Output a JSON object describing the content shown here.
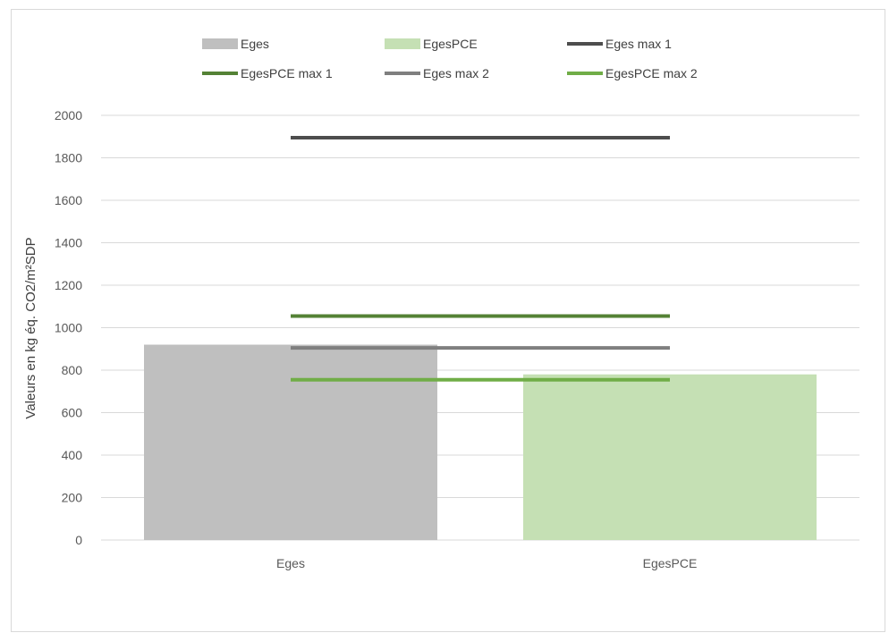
{
  "chart_data": {
    "type": "bar",
    "title": "",
    "xlabel": "",
    "ylabel": "Valeurs en kg éq. CO2/m²SDP",
    "categories": [
      "Eges",
      "EgesPCE"
    ],
    "ylim": [
      0,
      2000
    ],
    "yticks": [
      0,
      200,
      400,
      600,
      800,
      1000,
      1200,
      1400,
      1600,
      1800,
      2000
    ],
    "grid": true,
    "legend_position": "top",
    "bars": [
      {
        "name": "Eges",
        "category": "Eges",
        "value": 920,
        "color": "#bfbfbf"
      },
      {
        "name": "EgesPCE",
        "category": "EgesPCE",
        "value": 780,
        "color": "#c5e0b4"
      }
    ],
    "reference_lines": [
      {
        "name": "Eges max 1",
        "value": 1895,
        "color": "#4d4d4d"
      },
      {
        "name": "EgesPCE max 1",
        "value": 1055,
        "color": "#548235"
      },
      {
        "name": "Eges max 2",
        "value": 905,
        "color": "#7f7f7f"
      },
      {
        "name": "EgesPCE max 2",
        "value": 755,
        "color": "#70ad47"
      }
    ],
    "legend": [
      {
        "label": "Eges",
        "kind": "box",
        "color": "#bfbfbf"
      },
      {
        "label": "EgesPCE",
        "kind": "box",
        "color": "#c5e0b4"
      },
      {
        "label": "Eges max 1",
        "kind": "line",
        "color": "#4d4d4d"
      },
      {
        "label": "EgesPCE max 1",
        "kind": "line",
        "color": "#548235"
      },
      {
        "label": "Eges max 2",
        "kind": "line",
        "color": "#7f7f7f"
      },
      {
        "label": "EgesPCE max 2",
        "kind": "line",
        "color": "#70ad47"
      }
    ]
  }
}
